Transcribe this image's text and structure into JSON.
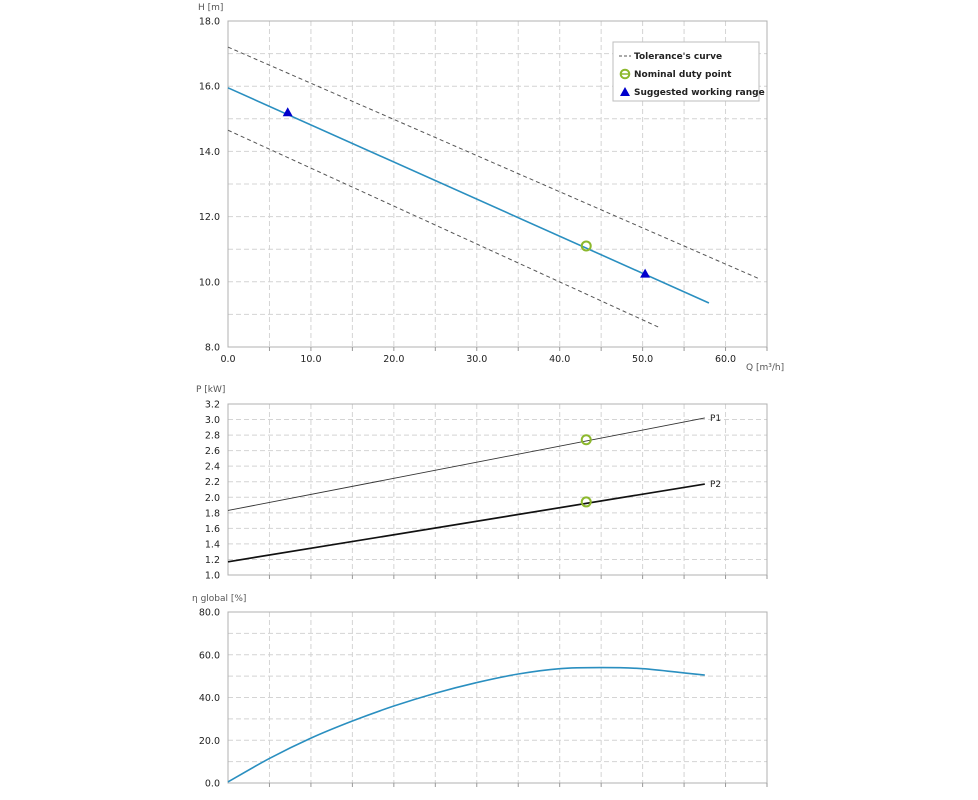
{
  "colors": {
    "curve": "#2a8fc0",
    "tolerance": "#555555",
    "duty_point": "#8cb82c",
    "working_range": "#0000cc",
    "p1": "#333333",
    "p2": "#111111",
    "grid": "#d4d4d4"
  },
  "chart_data": [
    {
      "type": "line",
      "ylabel": "H [m]",
      "xlabel": "Q [m³/h]",
      "xlim": [
        0,
        65
      ],
      "ylim": [
        8,
        18
      ],
      "xticks": [
        "0.0",
        "10.0",
        "20.0",
        "30.0",
        "40.0",
        "50.0",
        "60.0"
      ],
      "yticks": [
        "8.0",
        "10.0",
        "12.0",
        "14.0",
        "16.0",
        "18.0"
      ],
      "grid": true,
      "legend_position": "top-right",
      "legend": {
        "tolerance": "Tolerance's curve",
        "duty": "Nominal duty point",
        "range": "Suggested working range"
      },
      "series": [
        {
          "name": "Tolerance's curve",
          "style": "dashed",
          "x": [
            0,
            64
          ],
          "y": [
            17.2,
            10.1
          ]
        },
        {
          "name": "",
          "style": "solid",
          "x": [
            0,
            58
          ],
          "y": [
            15.95,
            9.35
          ]
        },
        {
          "name": "",
          "style": "dashed",
          "x": [
            0,
            52
          ],
          "y": [
            14.65,
            8.6
          ]
        }
      ],
      "duty_point": {
        "x": 43.2,
        "y": 11.1
      },
      "working_range": [
        {
          "x": 7.2,
          "y": 15.2
        },
        {
          "x": 50.3,
          "y": 10.25
        }
      ]
    },
    {
      "type": "line",
      "ylabel": "P [kW]",
      "xlim": [
        0,
        65
      ],
      "ylim": [
        1.0,
        3.2
      ],
      "yticks": [
        "1.0",
        "1.2",
        "1.4",
        "1.6",
        "1.8",
        "2.0",
        "2.2",
        "2.4",
        "2.6",
        "2.8",
        "3.0",
        "3.2"
      ],
      "grid": true,
      "series": [
        {
          "name": "P1",
          "x": [
            0,
            57.5
          ],
          "y": [
            1.83,
            3.02
          ]
        },
        {
          "name": "P2",
          "x": [
            0,
            57.5
          ],
          "y": [
            1.17,
            2.17
          ]
        }
      ],
      "duty_points": [
        {
          "x": 43.2,
          "y": 2.74
        },
        {
          "x": 43.2,
          "y": 1.94
        }
      ]
    },
    {
      "type": "line",
      "ylabel": "η global [%]",
      "xlim": [
        0,
        65
      ],
      "ylim": [
        0,
        80
      ],
      "yticks": [
        "0.0",
        "20.0",
        "40.0",
        "60.0",
        "80.0"
      ],
      "grid": true,
      "series": [
        {
          "name": "",
          "x": [
            0,
            5,
            10,
            15,
            20,
            25,
            30,
            35,
            40,
            45,
            50,
            55,
            57.5
          ],
          "y": [
            0.5,
            11.5,
            21,
            29,
            36,
            42,
            47,
            51,
            53.5,
            54,
            53.5,
            51.5,
            50.5
          ]
        }
      ]
    }
  ]
}
